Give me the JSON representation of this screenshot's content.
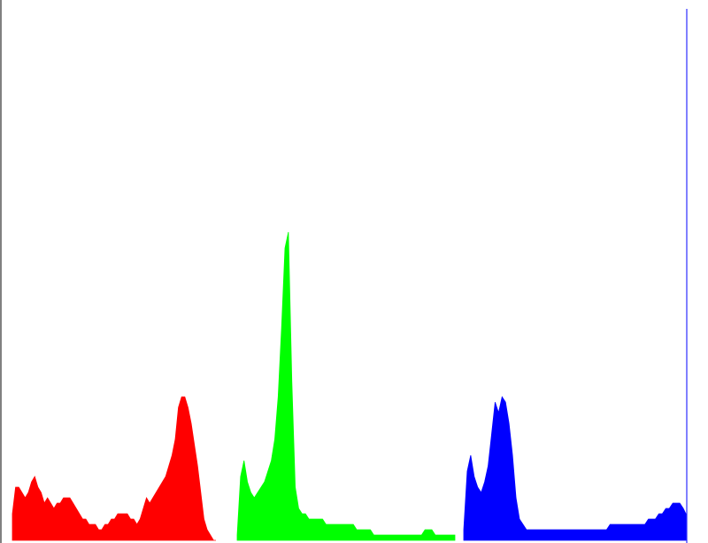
{
  "chart_data": {
    "type": "area",
    "title": "",
    "xlabel": "",
    "ylabel": "",
    "grid": false,
    "legend": "none",
    "x_range": [
      0,
      255
    ],
    "y_range": [
      0,
      100
    ],
    "series": [
      {
        "color": "#ff0000",
        "x": [
          0,
          4,
          8,
          12,
          16,
          20,
          24,
          28,
          32,
          36,
          40,
          44,
          48,
          52,
          56,
          60,
          64,
          68,
          72,
          76,
          80,
          84,
          88,
          92,
          96,
          100,
          104,
          108,
          112,
          116,
          120,
          124,
          128,
          132,
          136,
          140,
          144,
          148,
          152,
          156,
          160,
          164,
          168,
          172,
          176,
          180,
          184,
          188,
          192,
          196,
          200,
          204,
          208,
          212,
          216,
          220,
          224,
          228,
          232,
          236,
          240,
          244,
          248,
          252,
          255
        ],
        "values": [
          5,
          10,
          10,
          9,
          8,
          9,
          11,
          12,
          10,
          9,
          7,
          8,
          7,
          6,
          7,
          7,
          8,
          8,
          8,
          7,
          6,
          5,
          4,
          4,
          3,
          3,
          3,
          2,
          2,
          3,
          3,
          4,
          4,
          5,
          5,
          5,
          5,
          4,
          4,
          3,
          4,
          6,
          8,
          7,
          8,
          9,
          10,
          11,
          12,
          14,
          16,
          19,
          25,
          27,
          27,
          25,
          22,
          18,
          14,
          9,
          4,
          2,
          1,
          0,
          0
        ]
      },
      {
        "color": "#00ff00",
        "x": [
          0,
          4,
          8,
          12,
          16,
          20,
          24,
          28,
          32,
          36,
          40,
          44,
          48,
          52,
          56,
          60,
          64,
          68,
          72,
          76,
          80,
          84,
          88,
          92,
          96,
          100,
          104,
          108,
          112,
          116,
          120,
          124,
          128,
          132,
          136,
          140,
          144,
          148,
          152,
          156,
          160,
          164,
          168,
          172,
          176,
          180,
          184,
          188,
          192,
          196,
          200,
          204,
          208,
          212,
          216,
          220,
          224,
          228,
          232,
          236,
          240,
          244,
          248,
          252,
          255
        ],
        "values": [
          1,
          12,
          15,
          11,
          9,
          8,
          9,
          10,
          11,
          13,
          15,
          19,
          27,
          40,
          55,
          58,
          30,
          10,
          6,
          5,
          5,
          4,
          4,
          4,
          4,
          4,
          3,
          3,
          3,
          3,
          3,
          3,
          3,
          3,
          3,
          2,
          2,
          2,
          2,
          2,
          1,
          1,
          1,
          1,
          1,
          1,
          1,
          1,
          1,
          1,
          1,
          1,
          1,
          1,
          1,
          2,
          2,
          2,
          1,
          1,
          1,
          1,
          1,
          1,
          1
        ]
      },
      {
        "color": "#0000ff",
        "x": [
          0,
          4,
          8,
          12,
          16,
          20,
          24,
          28,
          32,
          36,
          40,
          44,
          48,
          52,
          56,
          60,
          64,
          68,
          72,
          76,
          80,
          84,
          88,
          92,
          96,
          100,
          104,
          108,
          112,
          116,
          120,
          124,
          128,
          132,
          136,
          140,
          144,
          148,
          152,
          156,
          160,
          164,
          168,
          172,
          176,
          180,
          184,
          188,
          192,
          196,
          200,
          204,
          208,
          212,
          216,
          220,
          224,
          228,
          232,
          236,
          240,
          244,
          248,
          252,
          255
        ],
        "values": [
          2,
          13,
          16,
          12,
          10,
          9,
          11,
          14,
          20,
          26,
          24,
          27,
          26,
          22,
          16,
          8,
          4,
          3,
          2,
          2,
          2,
          2,
          2,
          2,
          2,
          2,
          2,
          2,
          2,
          2,
          2,
          2,
          2,
          2,
          2,
          2,
          2,
          2,
          2,
          2,
          2,
          2,
          3,
          3,
          3,
          3,
          3,
          3,
          3,
          3,
          3,
          3,
          3,
          4,
          4,
          4,
          5,
          5,
          6,
          6,
          7,
          7,
          7,
          6,
          5
        ]
      }
    ]
  }
}
